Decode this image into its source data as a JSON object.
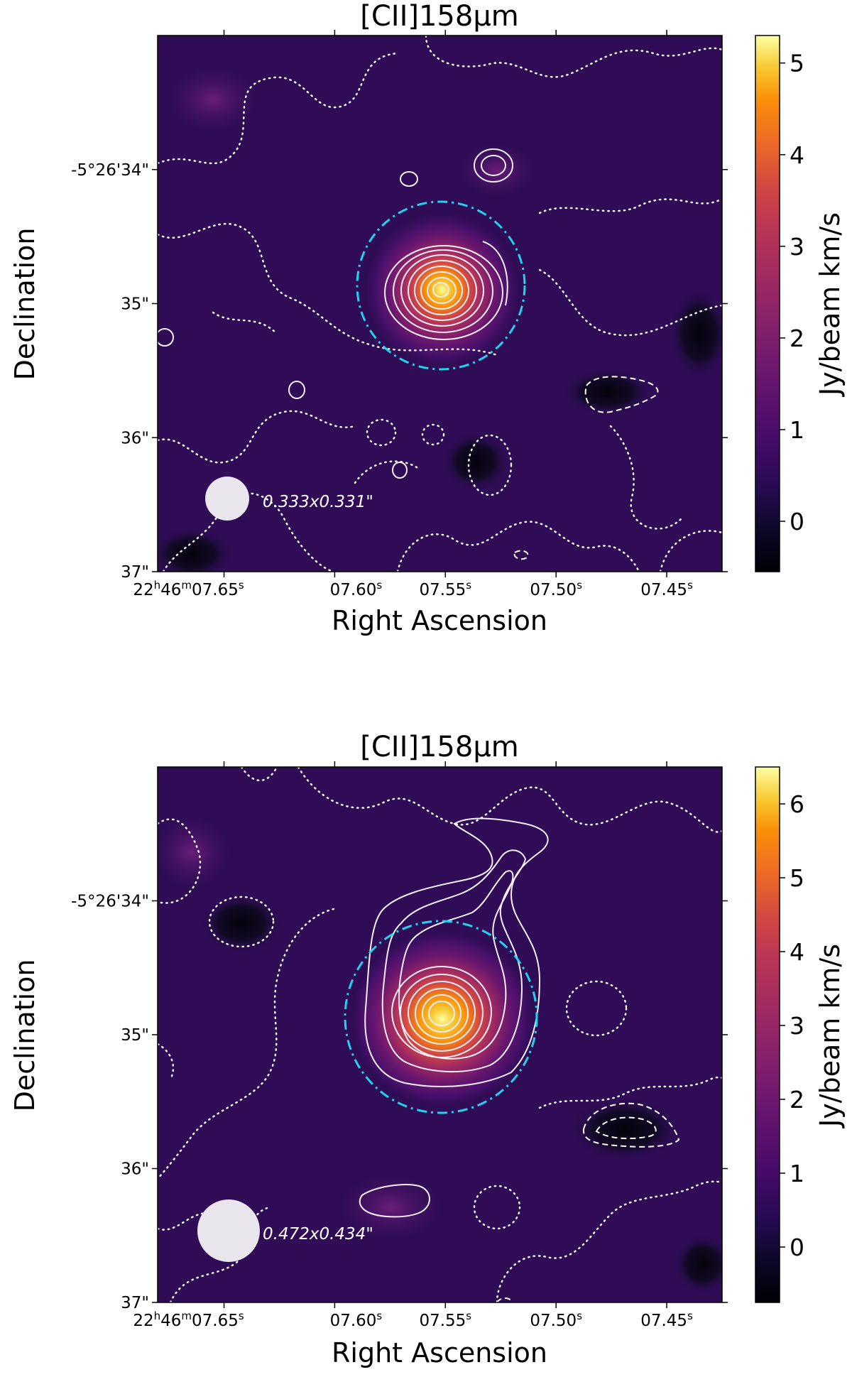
{
  "chart_data": [
    {
      "type": "heatmap",
      "title": "[CII]158μm",
      "xlabel": "Right Ascension",
      "ylabel": "Declination",
      "colorbar_label": "Jy/beam km/s",
      "colormap": "inferno",
      "colorbar_range": [
        -0.55,
        5.3
      ],
      "colorbar_ticks": [
        "0",
        "1",
        "2",
        "3",
        "4",
        "5"
      ],
      "x_ticks": [
        {
          "value": 7.65,
          "label": "22h46m07.65s"
        },
        {
          "value": 7.6,
          "label": "07.60s"
        },
        {
          "value": 7.55,
          "label": "07.55s"
        },
        {
          "value": 7.5,
          "label": "07.50s"
        },
        {
          "value": 7.45,
          "label": "07.45s"
        }
      ],
      "y_ticks": [
        {
          "value": 34,
          "label": "-5°26'34\""
        },
        {
          "value": 35,
          "label": "35\""
        },
        {
          "value": 36,
          "label": "36\""
        },
        {
          "value": 37,
          "label": "37\""
        }
      ],
      "beam_label": "0.333x0.331\"",
      "peak_value": 5.2,
      "aperture_color": "#22d3ee"
    },
    {
      "type": "heatmap",
      "title": "[CII]158μm",
      "xlabel": "Right Ascension",
      "ylabel": "Declination",
      "colorbar_label": "Jy/beam km/s",
      "colormap": "inferno",
      "colorbar_range": [
        -0.75,
        6.5
      ],
      "colorbar_ticks": [
        "0",
        "1",
        "2",
        "3",
        "4",
        "5",
        "6"
      ],
      "x_ticks": [
        {
          "value": 7.65,
          "label": "22h46m07.65s"
        },
        {
          "value": 7.6,
          "label": "07.60s"
        },
        {
          "value": 7.55,
          "label": "07.55s"
        },
        {
          "value": 7.5,
          "label": "07.50s"
        },
        {
          "value": 7.45,
          "label": "07.45s"
        }
      ],
      "y_ticks": [
        {
          "value": 34,
          "label": "-5°26'34\""
        },
        {
          "value": 35,
          "label": "35\""
        },
        {
          "value": 36,
          "label": "36\""
        },
        {
          "value": 37,
          "label": "37\""
        }
      ],
      "beam_label": "0.472x0.434\"",
      "peak_value": 6.4,
      "aperture_color": "#22d3ee"
    }
  ]
}
